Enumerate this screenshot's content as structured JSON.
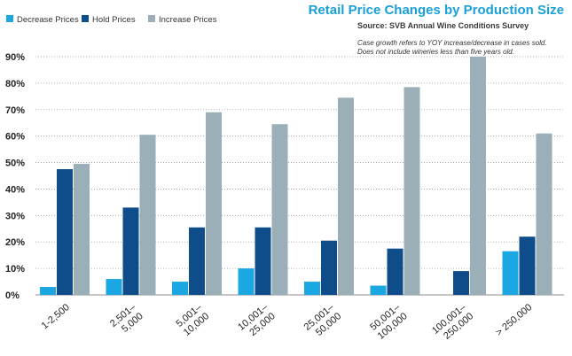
{
  "chart_data": {
    "type": "bar",
    "title": "Retail Price Changes by Production Size",
    "subtitle": "Source: SVB Annual Wine Conditions Survey",
    "notes": [
      "Case growth refers to YOY increase/decrease in cases sold.",
      "Does not include wineries less than five years old."
    ],
    "categories": [
      [
        "1-2,500"
      ],
      [
        "2,501–",
        "5,000"
      ],
      [
        "5,001–",
        "10,000"
      ],
      [
        "10,001–",
        "25,000"
      ],
      [
        "25,001–",
        "50,000"
      ],
      [
        "50,001–",
        "100,000"
      ],
      [
        "100,001–",
        "250,000"
      ],
      [
        "> 250,000"
      ]
    ],
    "series": [
      {
        "name": "Decrease Prices",
        "color": "#1ba7e1",
        "values": [
          3,
          6,
          5,
          10,
          5,
          3.5,
          0,
          16.5
        ]
      },
      {
        "name": "Hold Prices",
        "color": "#0f4d8a",
        "values": [
          47.5,
          33,
          25.5,
          25.5,
          20.5,
          17.5,
          9,
          22
        ]
      },
      {
        "name": "Increase Prices",
        "color": "#9aafb8",
        "values": [
          49.5,
          60.5,
          69,
          64.5,
          74.5,
          78.5,
          90,
          61
        ]
      }
    ],
    "yticks": [
      "0%",
      "10%",
      "20%",
      "30%",
      "40%",
      "50%",
      "60%",
      "70%",
      "80%",
      "90%"
    ],
    "ylim": [
      0,
      90
    ],
    "xlabel": "",
    "ylabel": "",
    "legend_position": "top-left",
    "grid": true
  }
}
